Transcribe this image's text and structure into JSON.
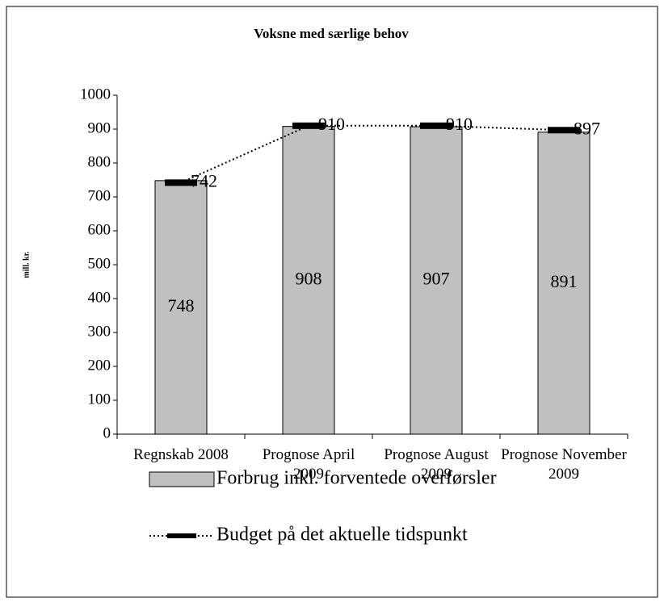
{
  "chart_data": {
    "type": "bar_line",
    "title": "Voksne med særlige behov",
    "y_label": "mill. kr.",
    "categories": [
      "Regnskab 2008",
      "Prognose April 2009",
      "Prognose August 2009",
      "Prognose November 2009"
    ],
    "series": [
      {
        "name": "Forbrug inkl. forventede overførsler",
        "type": "bar",
        "color": "#c0c0c0",
        "values": [
          748,
          908,
          907,
          891
        ]
      },
      {
        "name": "Budget på det aktuelle tidspunkt",
        "type": "line",
        "color": "#000000",
        "values": [
          742,
          910,
          910,
          897
        ]
      }
    ],
    "ylim": [
      0,
      1000
    ],
    "yticks": [
      0,
      100,
      200,
      300,
      400,
      500,
      600,
      700,
      800,
      900,
      1000
    ]
  }
}
